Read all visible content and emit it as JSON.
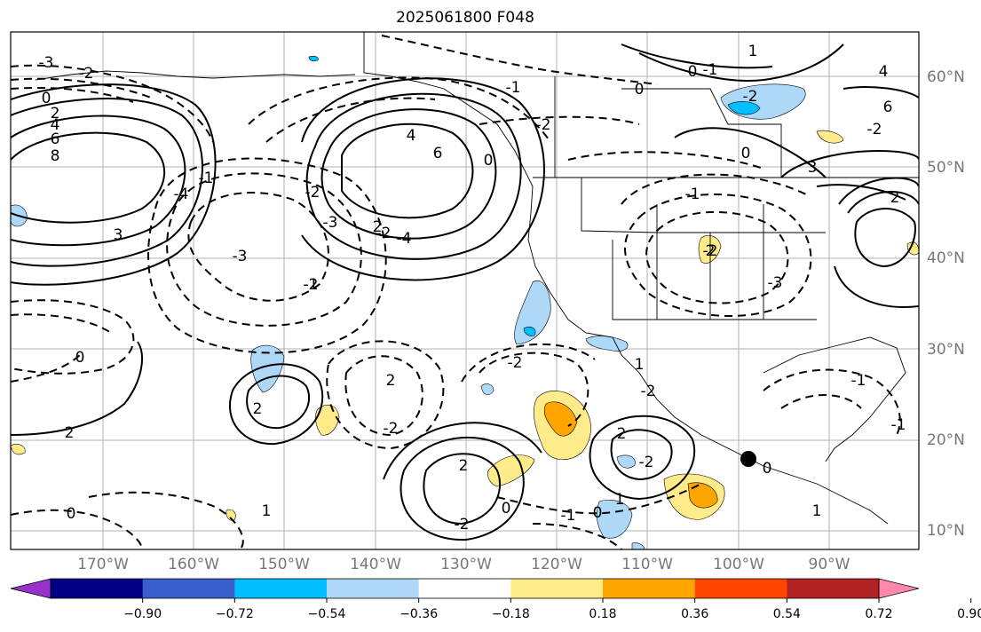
{
  "title": "2025061800 F048",
  "latitude_labels": [
    "60°N",
    "50°N",
    "40°N",
    "30°N",
    "20°N",
    "10°N"
  ],
  "longitude_labels": [
    "170°W",
    "160°W",
    "150°W",
    "140°W",
    "130°W",
    "120°W",
    "110°W",
    "100°W",
    "90°W"
  ],
  "contour_labels": [
    "-3",
    "-2",
    "0",
    "2",
    "4",
    "6",
    "8",
    "-1",
    "3",
    "-4",
    "-3",
    "-2",
    "-1",
    "0",
    "2",
    "4",
    "6",
    "-2",
    "-4",
    "-3",
    "-2",
    "-2",
    "2",
    "0",
    "1",
    "-1",
    "2",
    "2",
    "-2",
    "2",
    "-2",
    "1",
    "-2",
    "2",
    "0",
    "-1",
    "0",
    "-1",
    "1",
    "2",
    "-2",
    "0",
    "-1",
    "-3",
    "-2",
    "-1",
    "0",
    "1",
    "-1",
    "0",
    "-2",
    "6",
    "4",
    "3",
    "2",
    "-2",
    "0",
    "1",
    "-2",
    "0"
  ],
  "colorbar": {
    "tick_labels": [
      "−0.90",
      "−0.72",
      "−0.54",
      "−0.36",
      "−0.18",
      "0.18",
      "0.36",
      "0.54",
      "0.72",
      "0.90"
    ],
    "colors": [
      "#9932CC",
      "#000080",
      "#3A5FCD",
      "#00BFFF",
      "#ADD8F7",
      "#FFFFFF",
      "#FFEB8A",
      "#FFA500",
      "#FF4500",
      "#B22222",
      "#FF88AA"
    ]
  },
  "marker": "filled-circle"
}
